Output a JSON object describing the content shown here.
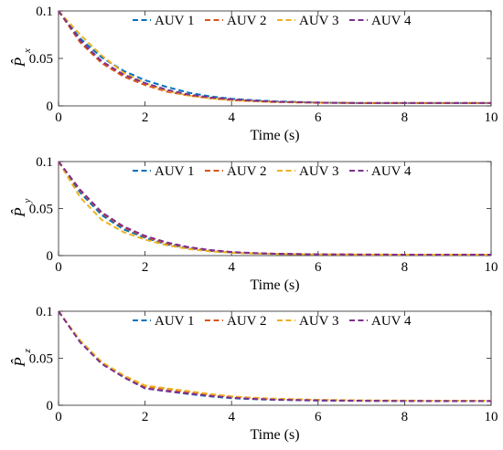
{
  "chart_data": [
    {
      "type": "line",
      "ylabel": "P̂",
      "ylabel_sub": "x",
      "xlabel": "Time (s)",
      "xlim": [
        0,
        10
      ],
      "ylim": [
        0,
        0.1
      ],
      "xticks": [
        "0",
        "2",
        "4",
        "6",
        "8",
        "10"
      ],
      "yticks": [
        "0",
        "0.05",
        "0.1"
      ],
      "legend_position": "top",
      "grid": false,
      "x": [
        0,
        0.5,
        1,
        1.5,
        2,
        2.5,
        3,
        3.5,
        4,
        4.5,
        5,
        6,
        7,
        8,
        9,
        10
      ],
      "series": [
        {
          "name": "AUV 1",
          "color": "#0072BD",
          "values": [
            0.1,
            0.071,
            0.051,
            0.037,
            0.027,
            0.02,
            0.014,
            0.01,
            0.0075,
            0.006,
            0.0048,
            0.0035,
            0.003,
            0.003,
            0.003,
            0.003
          ]
        },
        {
          "name": "AUV 2",
          "color": "#D95319",
          "values": [
            0.1,
            0.067,
            0.045,
            0.031,
            0.022,
            0.015,
            0.011,
            0.008,
            0.006,
            0.005,
            0.004,
            0.0033,
            0.003,
            0.003,
            0.003,
            0.003
          ]
        },
        {
          "name": "AUV 3",
          "color": "#EDB120",
          "values": [
            0.1,
            0.075,
            0.053,
            0.035,
            0.024,
            0.016,
            0.011,
            0.008,
            0.006,
            0.005,
            0.0042,
            0.0034,
            0.003,
            0.003,
            0.003,
            0.003
          ]
        },
        {
          "name": "AUV 4",
          "color": "#7E2F8E",
          "values": [
            0.1,
            0.069,
            0.047,
            0.033,
            0.024,
            0.017,
            0.012,
            0.009,
            0.007,
            0.0055,
            0.0045,
            0.0034,
            0.003,
            0.003,
            0.003,
            0.003
          ]
        }
      ]
    },
    {
      "type": "line",
      "ylabel": "P̂",
      "ylabel_sub": "y",
      "xlabel": "Time (s)",
      "xlim": [
        0,
        10
      ],
      "ylim": [
        0,
        0.1
      ],
      "xticks": [
        "0",
        "2",
        "4",
        "6",
        "8",
        "10"
      ],
      "yticks": [
        "0",
        "0.05",
        "0.1"
      ],
      "legend_position": "top",
      "grid": false,
      "x": [
        0,
        0.5,
        1,
        1.5,
        2,
        2.5,
        3,
        3.5,
        4,
        4.5,
        5,
        6,
        7,
        8,
        9,
        10
      ],
      "series": [
        {
          "name": "AUV 1",
          "color": "#0072BD",
          "values": [
            0.1,
            0.067,
            0.043,
            0.028,
            0.019,
            0.012,
            0.008,
            0.005,
            0.0033,
            0.0024,
            0.0018,
            0.0012,
            0.001,
            0.001,
            0.001,
            0.001
          ]
        },
        {
          "name": "AUV 2",
          "color": "#D95319",
          "values": [
            0.1,
            0.069,
            0.045,
            0.03,
            0.02,
            0.013,
            0.0085,
            0.0055,
            0.0036,
            0.0026,
            0.0019,
            0.0013,
            0.0011,
            0.001,
            0.001,
            0.001
          ]
        },
        {
          "name": "AUV 3",
          "color": "#EDB120",
          "values": [
            0.1,
            0.062,
            0.038,
            0.025,
            0.017,
            0.011,
            0.007,
            0.0045,
            0.003,
            0.0022,
            0.0017,
            0.0012,
            0.001,
            0.001,
            0.001,
            0.001
          ]
        },
        {
          "name": "AUV 4",
          "color": "#7E2F8E",
          "values": [
            0.1,
            0.07,
            0.046,
            0.031,
            0.021,
            0.014,
            0.009,
            0.006,
            0.0038,
            0.0027,
            0.002,
            0.0013,
            0.0011,
            0.001,
            0.001,
            0.001
          ]
        }
      ]
    },
    {
      "type": "line",
      "ylabel": "P̂",
      "ylabel_sub": "z",
      "xlabel": "Time (s)",
      "xlim": [
        0,
        10
      ],
      "ylim": [
        0,
        0.1
      ],
      "xticks": [
        "0",
        "2",
        "4",
        "6",
        "8",
        "10"
      ],
      "yticks": [
        "0",
        "0.05",
        "0.1"
      ],
      "legend_position": "top",
      "grid": false,
      "x": [
        0,
        0.5,
        1,
        1.5,
        2,
        2.5,
        3,
        3.5,
        4,
        4.5,
        5,
        6,
        7,
        8,
        9,
        10
      ],
      "series": [
        {
          "name": "AUV 1",
          "color": "#0072BD",
          "values": [
            0.1,
            0.068,
            0.045,
            0.03,
            0.018,
            0.015,
            0.012,
            0.0095,
            0.0075,
            0.0065,
            0.0058,
            0.005,
            0.0047,
            0.0045,
            0.0045,
            0.0045
          ]
        },
        {
          "name": "AUV 2",
          "color": "#D95319",
          "values": [
            0.1,
            0.068,
            0.045,
            0.031,
            0.02,
            0.017,
            0.014,
            0.011,
            0.009,
            0.0075,
            0.0065,
            0.0055,
            0.005,
            0.0048,
            0.0047,
            0.0047
          ]
        },
        {
          "name": "AUV 3",
          "color": "#EDB120",
          "values": [
            0.1,
            0.069,
            0.046,
            0.032,
            0.021,
            0.018,
            0.015,
            0.012,
            0.0095,
            0.008,
            0.007,
            0.0058,
            0.0052,
            0.005,
            0.0048,
            0.0048
          ]
        },
        {
          "name": "AUV 4",
          "color": "#7E2F8E",
          "values": [
            0.1,
            0.067,
            0.044,
            0.03,
            0.018,
            0.015,
            0.0125,
            0.01,
            0.008,
            0.0068,
            0.006,
            0.0052,
            0.0048,
            0.0046,
            0.0045,
            0.0045
          ]
        }
      ]
    }
  ]
}
